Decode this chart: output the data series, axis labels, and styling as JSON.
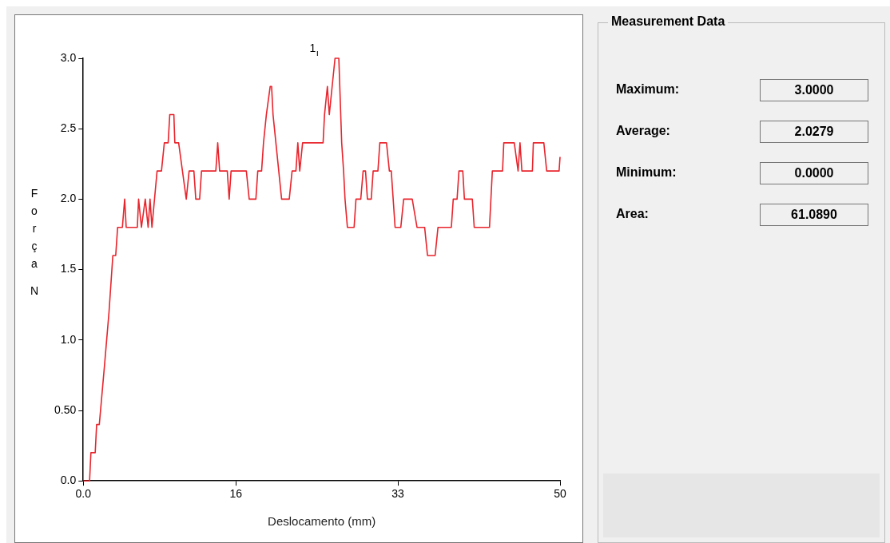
{
  "chart_data": [
    {
      "type": "line",
      "xlabel": "Deslocamento (mm)",
      "ylabel": "Força N",
      "x": [
        0,
        0.66,
        0.8,
        1.25,
        1.4,
        1.68,
        2.2,
        2.7,
        3.1,
        3.4,
        3.6,
        4.1,
        4.34,
        4.5,
        5.67,
        5.8,
        6.1,
        6.5,
        6.8,
        7.0,
        7.2,
        7.74,
        8.2,
        8.5,
        8.9,
        9.07,
        9.5,
        9.6,
        10.0,
        10.4,
        10.8,
        11.1,
        11.6,
        11.8,
        12.2,
        12.4,
        13.9,
        14.1,
        14.3,
        15.1,
        15.3,
        15.5,
        17.1,
        17.4,
        18.1,
        18.3,
        18.7,
        18.9,
        19.2,
        19.6,
        19.75,
        19.9,
        20.2,
        20.5,
        20.8,
        21.6,
        21.9,
        22.3,
        22.5,
        22.7,
        23.0,
        25.15,
        25.3,
        25.6,
        25.8,
        26.1,
        26.4,
        26.8,
        27.1,
        27.3,
        27.45,
        27.7,
        28.4,
        28.6,
        29.1,
        29.35,
        29.6,
        29.8,
        30.2,
        30.4,
        30.9,
        31.1,
        31.8,
        32.1,
        32.3,
        32.5,
        32.7,
        33.3,
        33.6,
        34.5,
        35.0,
        35.8,
        36.1,
        36.9,
        37.2,
        38.6,
        38.8,
        39.2,
        39.4,
        39.8,
        39.97,
        40.8,
        41.0,
        42.6,
        42.9,
        43.97,
        44.1,
        45.2,
        45.6,
        45.8,
        46.0,
        47.1,
        47.2,
        48.3,
        48.6,
        49.9,
        50
      ],
      "series": [
        {
          "color": "#e8242c",
          "values": [
            0,
            0,
            0.2,
            0.2,
            0.4,
            0.4,
            0.8,
            1.2,
            1.6,
            1.6,
            1.8,
            1.8,
            2.0,
            1.8,
            1.8,
            2.0,
            1.8,
            2.0,
            1.8,
            2.0,
            1.8,
            2.2,
            2.2,
            2.4,
            2.4,
            2.6,
            2.6,
            2.4,
            2.4,
            2.2,
            2.0,
            2.2,
            2.2,
            2.0,
            2.0,
            2.2,
            2.2,
            2.4,
            2.2,
            2.2,
            2.0,
            2.2,
            2.2,
            2.0,
            2.0,
            2.2,
            2.2,
            2.4,
            2.6,
            2.8,
            2.8,
            2.6,
            2.4,
            2.2,
            2.0,
            2.0,
            2.2,
            2.2,
            2.4,
            2.2,
            2.4,
            2.4,
            2.6,
            2.8,
            2.6,
            2.8,
            3.0,
            3.0,
            2.4,
            2.2,
            2.0,
            1.8,
            1.8,
            2.0,
            2.0,
            2.2,
            2.2,
            2.0,
            2.0,
            2.2,
            2.2,
            2.4,
            2.4,
            2.2,
            2.2,
            2.0,
            1.8,
            1.8,
            2.0,
            2.0,
            1.8,
            1.8,
            1.6,
            1.6,
            1.8,
            1.8,
            2.0,
            2.0,
            2.2,
            2.2,
            2.0,
            2.0,
            1.8,
            1.8,
            2.2,
            2.2,
            2.4,
            2.4,
            2.2,
            2.4,
            2.2,
            2.2,
            2.4,
            2.4,
            2.2,
            2.2,
            2.3
          ]
        }
      ],
      "xlim": [
        0,
        50
      ],
      "xticks": [
        {
          "value": 0,
          "label": "0.0"
        },
        16,
        33,
        50
      ],
      "ylim": [
        0,
        3
      ],
      "yticks": [
        {
          "value": 0,
          "label": "0.0"
        },
        {
          "value": 0.5,
          "label": "0.50"
        },
        {
          "value": 1,
          "label": "1.0"
        },
        {
          "value": 1.5,
          "label": "1.5"
        },
        {
          "value": 2,
          "label": "2.0"
        },
        {
          "value": 2.5,
          "label": "2.5"
        },
        {
          "value": 3,
          "label": "3.0"
        }
      ],
      "grid": false,
      "legend": false,
      "marker": "none",
      "line_style": "solid",
      "annotations": [
        "1"
      ]
    },
    {
      "type": "other",
      "title": "Measurement Data",
      "annotations": [
        "Maximum:",
        "3.0000",
        "Average:",
        "2.0279",
        "Minimum:",
        "0.0000",
        "Area:",
        "61.0890"
      ]
    }
  ]
}
